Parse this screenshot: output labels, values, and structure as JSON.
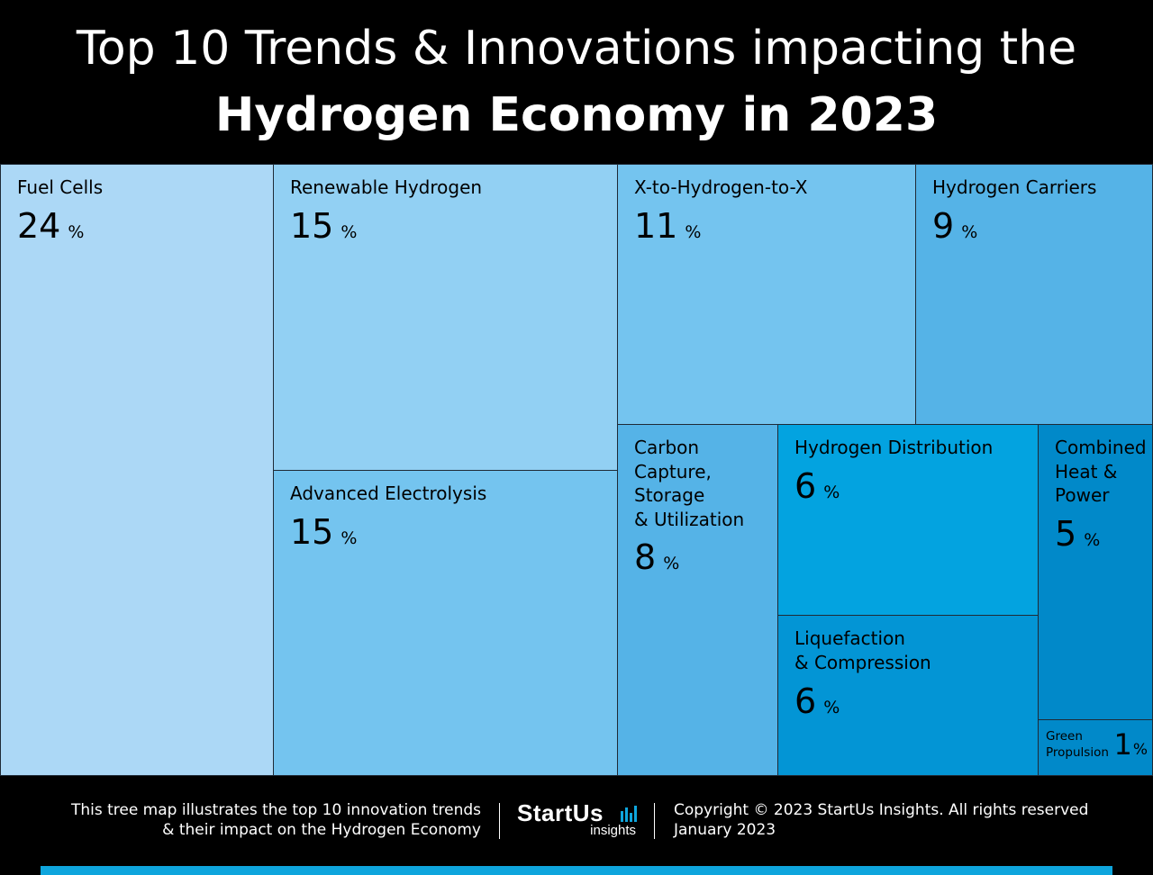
{
  "title": {
    "line1": "Top 10 Trends & Innovations impacting the",
    "line2": "Hydrogen Economy in 2023"
  },
  "chart_data": {
    "type": "treemap",
    "unit": "%",
    "items": [
      {
        "label": "Fuel Cells",
        "value": 24,
        "color": "#acd8f6"
      },
      {
        "label": "Renewable Hydrogen",
        "value": 15,
        "color": "#92d0f3"
      },
      {
        "label": "Advanced Electrolysis",
        "value": 15,
        "color": "#74c4ef"
      },
      {
        "label": "X-to-Hydrogen-to-X",
        "value": 11,
        "color": "#74c4ef"
      },
      {
        "label": "Hydrogen Carriers",
        "value": 9,
        "color": "#55b3e7"
      },
      {
        "label": "Carbon\nCapture,\nStorage\n& Utilization",
        "value": 8,
        "color": "#55b3e7"
      },
      {
        "label": "Hydrogen Distribution",
        "value": 6,
        "color": "#03a3e0"
      },
      {
        "label": "Liquefaction\n& Compression",
        "value": 6,
        "color": "#0395d5"
      },
      {
        "label": "Combined\nHeat &\nPower",
        "value": 5,
        "color": "#0189c9"
      },
      {
        "label": "Green\nPropulsion",
        "value": 1,
        "color": "#0189c9"
      }
    ]
  },
  "footer": {
    "description_line1": "This tree map illustrates the top 10 innovation trends",
    "description_line2": "& their impact on the Hydrogen Economy",
    "logo_main": "StartUs",
    "logo_sub": "insights",
    "copyright": "Copyright © 2023 StartUs Insights. All rights reserved",
    "date": "January 2023",
    "accent_color": "#0ea5dd"
  }
}
